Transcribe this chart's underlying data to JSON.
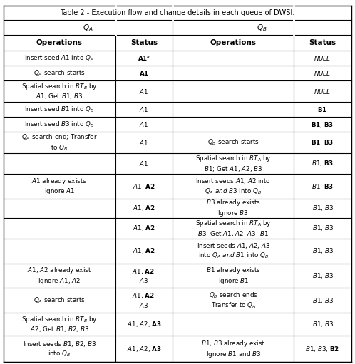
{
  "title": "Table 2 - Execution flow and change details in each queue of DWSI.",
  "col_headers": [
    "Q_A",
    "Q_B"
  ],
  "sub_headers": [
    "Operations",
    "Status",
    "Operations",
    "Status"
  ],
  "rows": [
    {
      "qa_op": "Insert seed $A1$ into $Q_A$",
      "qa_status": "$\\mathbf{A1}^a$",
      "qb_op": "",
      "qb_status": "$\\mathit{NULL}$"
    },
    {
      "qa_op": "$Q_A$ search starts",
      "qa_status": "$\\mathbf{A1}$",
      "qb_op": "",
      "qb_status": "$\\mathit{NULL}$"
    },
    {
      "qa_op": "Spatial search in $RT_B$ by\n$A1$; Get $B1$, $B3$",
      "qa_status": "$A1$",
      "qb_op": "",
      "qb_status": "$\\mathit{NULL}$"
    },
    {
      "qa_op": "Insert seed $B1$ into $Q_B$",
      "qa_status": "$A1$",
      "qb_op": "",
      "qb_status": "$\\mathbf{B1}$"
    },
    {
      "qa_op": "Insert seed $B3$ into $Q_B$",
      "qa_status": "$A1$",
      "qb_op": "",
      "qb_status": "$\\mathbf{B1}$, $\\mathbf{B3}$"
    },
    {
      "qa_op": "$Q_A$ search end; Transfer\nto $Q_B$",
      "qa_status": "$A1$",
      "qb_op": "$Q_B$ search starts",
      "qb_status": "$\\mathbf{B1}$, $\\mathbf{B3}$"
    },
    {
      "qa_op": "",
      "qa_status": "$A1$",
      "qb_op": "Spatial search in $RT_A$ by\n$B1$; Get $A1$, $A2$, $B3$",
      "qb_status": "$B1$, $\\mathbf{B3}$"
    },
    {
      "qa_op": "$A1$ already exists\nIgnore $A1$",
      "qa_status": "$A1$, $\\mathbf{A2}$",
      "qb_op": "Insert seeds $A1$, $A2$ into\n$Q_A$ $\\mathit{and}$ $B3$ into $Q_B$",
      "qb_status": "$B1$, $\\mathbf{B3}$"
    },
    {
      "qa_op": "",
      "qa_status": "$A1$, $\\mathbf{A2}$",
      "qb_op": "$B3$ already exists\nIgnore $B3$",
      "qb_status": "$B1$, $B3$"
    },
    {
      "qa_op": "",
      "qa_status": "$A1$, $\\mathbf{A2}$",
      "qb_op": "Spatial search in $RT_A$ by\n$B3$; Get $A1$, $A2$, $A3$, $B1$",
      "qb_status": "$B1$, $B3$"
    },
    {
      "qa_op": "",
      "qa_status": "$A1$, $\\mathbf{A2}$",
      "qb_op": "Insert seeds $A1$, $A2$, $A3$\ninto $Q_A$ $\\mathit{and}$ $B1$ into $Q_B$",
      "qb_status": "$B1$, $B3$"
    },
    {
      "qa_op": "$A1$, $A2$ already exist\nIgnore $A1$, $A2$",
      "qa_status": "$A1$, $\\mathbf{A2}$,\n$A3$",
      "qb_op": "$B1$ already exists\nIgnore $B1$",
      "qb_status": "$B1$, $B3$"
    },
    {
      "qa_op": "$Q_A$ search starts",
      "qa_status": "$A1$, $\\mathbf{A2}$,\n$A3$",
      "qb_op": "$Q_B$ search ends\nTransfer to $Q_A$",
      "qb_status": "$B1$, $B3$"
    },
    {
      "qa_op": "Spatial search in $RT_B$ by\n$A2$; Get $B1$, $B2$, $B3$",
      "qa_status": "$A1$, $A2$, $\\mathbf{A3}$",
      "qb_op": "",
      "qb_status": "$B1$, $B3$"
    },
    {
      "qa_op": "Insert seeds $B1$, $B2$, $B3$\ninto $Q_B$",
      "qa_status": "$A1$, $A2$, $\\mathbf{A3}$",
      "qb_op": "$B1$, $B3$ already exist\nIgnore $B1$ and $B3$",
      "qb_status": "$B1$, $B3$, $\\mathbf{B2}$"
    }
  ],
  "figsize": [
    4.98,
    5.11
  ],
  "dpi": 100
}
